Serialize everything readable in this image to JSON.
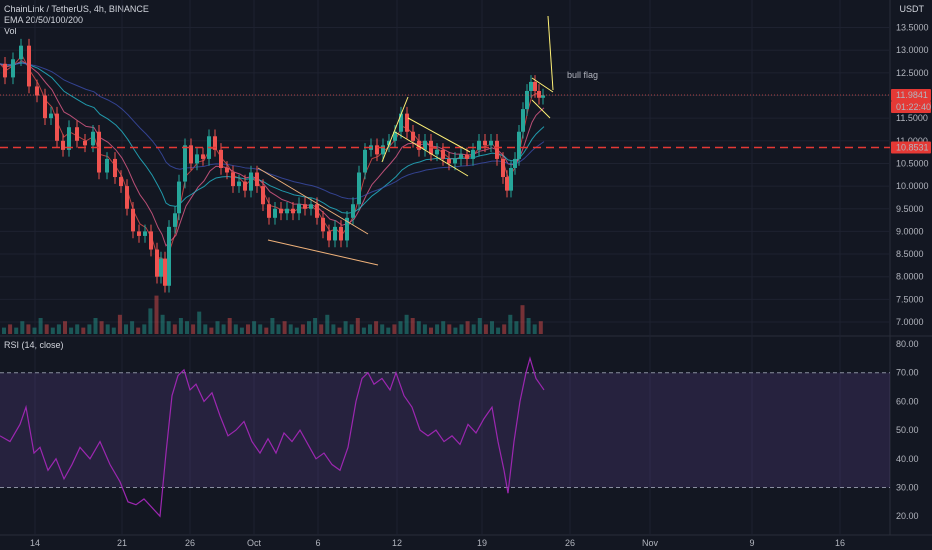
{
  "header": {
    "symbol_line": "ChainLink / TetherUS, 4h, BINANCE",
    "indicator_line": "EMA 20/50/100/200",
    "volume_label": "Vol",
    "currency": "USDT"
  },
  "rsi_panel": {
    "label": "RSI (14, close)",
    "ticks": [
      "80.00",
      "70.00",
      "60.00",
      "50.00",
      "40.00",
      "30.00",
      "20.00"
    ]
  },
  "annotation": {
    "text": "bull flag"
  },
  "price_tags": {
    "last_price": "11.9841",
    "countdown": "01:22:40",
    "level": "10.8531"
  },
  "colors": {
    "background": "#131722",
    "up": "#26a69a",
    "down": "#ef5350",
    "rsi_line": "#9c27b0",
    "rsi_band": "#7e57c2",
    "level_line": "#e53935",
    "flag": "#fff176",
    "trend": "#f0b27a"
  },
  "chart_data": {
    "type": "candlestick",
    "price_axis": {
      "ticks": [
        7.0,
        7.5,
        8.0,
        8.5,
        9.0,
        9.5,
        10.0,
        10.5,
        11.0,
        11.5,
        12.0,
        12.5,
        13.0,
        13.5
      ],
      "tick_labels": [
        "7.0000",
        "7.5000",
        "8.0000",
        "8.5000",
        "9.0000",
        "9.5000",
        "10.0000",
        "10.5000",
        "11.0000",
        "11.5000",
        "12.0000",
        "12.5000",
        "13.0000",
        "13.5000"
      ]
    },
    "x_axis": {
      "tick_labels": [
        "14",
        "21",
        "26",
        "Oct",
        "6",
        "12",
        "19",
        "26",
        "Nov",
        "9",
        "16"
      ]
    },
    "price_series": [
      [
        0,
        12.7
      ],
      [
        6,
        12.4
      ],
      [
        14,
        12.8
      ],
      [
        22,
        13.1
      ],
      [
        30,
        12.2
      ],
      [
        38,
        12.0
      ],
      [
        46,
        11.5
      ],
      [
        52,
        11.6
      ],
      [
        58,
        11.0
      ],
      [
        64,
        10.8
      ],
      [
        70,
        11.3
      ],
      [
        78,
        11.0
      ],
      [
        86,
        10.9
      ],
      [
        94,
        11.2
      ],
      [
        100,
        10.3
      ],
      [
        108,
        10.6
      ],
      [
        116,
        10.2
      ],
      [
        122,
        10.0
      ],
      [
        128,
        9.5
      ],
      [
        134,
        9.0
      ],
      [
        140,
        8.9
      ],
      [
        146,
        9.0
      ],
      [
        152,
        8.6
      ],
      [
        158,
        8.0
      ],
      [
        162,
        8.4
      ],
      [
        166,
        7.8
      ],
      [
        170,
        9.1
      ],
      [
        176,
        9.4
      ],
      [
        180,
        10.1
      ],
      [
        186,
        10.9
      ],
      [
        192,
        10.5
      ],
      [
        198,
        10.7
      ],
      [
        204,
        10.6
      ],
      [
        210,
        11.1
      ],
      [
        216,
        10.8
      ],
      [
        222,
        10.4
      ],
      [
        228,
        10.3
      ],
      [
        234,
        10.0
      ],
      [
        240,
        10.1
      ],
      [
        246,
        9.9
      ],
      [
        252,
        10.3
      ],
      [
        258,
        10.0
      ],
      [
        264,
        9.6
      ],
      [
        270,
        9.3
      ],
      [
        276,
        9.5
      ],
      [
        282,
        9.4
      ],
      [
        288,
        9.5
      ],
      [
        294,
        9.4
      ],
      [
        300,
        9.6
      ],
      [
        306,
        9.5
      ],
      [
        312,
        9.6
      ],
      [
        318,
        9.3
      ],
      [
        324,
        9.0
      ],
      [
        330,
        8.8
      ],
      [
        336,
        9.1
      ],
      [
        342,
        8.8
      ],
      [
        348,
        9.3
      ],
      [
        354,
        9.6
      ],
      [
        360,
        10.3
      ],
      [
        366,
        10.8
      ],
      [
        372,
        10.9
      ],
      [
        378,
        10.7
      ],
      [
        384,
        10.9
      ],
      [
        390,
        11.0
      ],
      [
        396,
        11.2
      ],
      [
        402,
        11.6
      ],
      [
        408,
        11.2
      ],
      [
        414,
        11.0
      ],
      [
        420,
        10.8
      ],
      [
        426,
        11.0
      ],
      [
        432,
        10.7
      ],
      [
        438,
        10.8
      ],
      [
        444,
        10.6
      ],
      [
        450,
        10.5
      ],
      [
        456,
        10.6
      ],
      [
        462,
        10.7
      ],
      [
        468,
        10.6
      ],
      [
        474,
        10.8
      ],
      [
        480,
        11.0
      ],
      [
        486,
        10.9
      ],
      [
        492,
        11.0
      ],
      [
        498,
        10.6
      ],
      [
        504,
        10.2
      ],
      [
        508,
        9.9
      ],
      [
        512,
        10.4
      ],
      [
        516,
        10.6
      ],
      [
        520,
        11.2
      ],
      [
        524,
        11.7
      ],
      [
        528,
        12.1
      ],
      [
        532,
        12.3
      ],
      [
        536,
        12.1
      ],
      [
        540,
        11.95
      ],
      [
        544,
        12.0
      ]
    ],
    "volume_series": [
      2,
      3,
      2,
      4,
      3,
      2,
      5,
      3,
      2,
      3,
      4,
      2,
      3,
      2,
      3,
      5,
      4,
      3,
      2,
      6,
      3,
      4,
      2,
      3,
      8,
      12,
      6,
      4,
      3,
      5,
      4,
      3,
      7,
      3,
      2,
      4,
      3,
      5,
      3,
      2,
      3,
      4,
      3,
      2,
      5,
      3,
      4,
      3,
      2,
      3,
      4,
      5,
      3,
      6,
      3,
      2,
      4,
      3,
      5,
      2,
      3,
      4,
      3,
      2,
      3,
      4,
      6,
      5,
      4,
      3,
      2,
      3,
      4,
      3,
      2,
      3,
      4,
      3,
      5,
      3,
      4,
      2,
      3,
      6,
      4,
      9,
      5,
      3,
      4
    ],
    "rsi_series": [
      [
        0,
        48
      ],
      [
        10,
        46
      ],
      [
        20,
        52
      ],
      [
        26,
        58
      ],
      [
        34,
        42
      ],
      [
        40,
        44
      ],
      [
        48,
        36
      ],
      [
        56,
        40
      ],
      [
        64,
        33
      ],
      [
        72,
        38
      ],
      [
        80,
        44
      ],
      [
        90,
        40
      ],
      [
        100,
        46
      ],
      [
        110,
        38
      ],
      [
        120,
        32
      ],
      [
        128,
        25
      ],
      [
        136,
        24
      ],
      [
        144,
        26
      ],
      [
        152,
        23
      ],
      [
        160,
        20
      ],
      [
        166,
        42
      ],
      [
        172,
        62
      ],
      [
        178,
        69
      ],
      [
        184,
        71
      ],
      [
        190,
        64
      ],
      [
        196,
        66
      ],
      [
        204,
        60
      ],
      [
        212,
        63
      ],
      [
        220,
        55
      ],
      [
        228,
        48
      ],
      [
        236,
        50
      ],
      [
        244,
        53
      ],
      [
        252,
        46
      ],
      [
        260,
        42
      ],
      [
        268,
        47
      ],
      [
        276,
        42
      ],
      [
        284,
        49
      ],
      [
        292,
        46
      ],
      [
        300,
        50
      ],
      [
        308,
        45
      ],
      [
        316,
        40
      ],
      [
        324,
        42
      ],
      [
        332,
        38
      ],
      [
        340,
        36
      ],
      [
        348,
        44
      ],
      [
        356,
        60
      ],
      [
        362,
        68
      ],
      [
        368,
        70
      ],
      [
        374,
        66
      ],
      [
        382,
        68
      ],
      [
        390,
        64
      ],
      [
        396,
        70
      ],
      [
        404,
        62
      ],
      [
        412,
        58
      ],
      [
        420,
        50
      ],
      [
        428,
        48
      ],
      [
        436,
        50
      ],
      [
        444,
        46
      ],
      [
        452,
        48
      ],
      [
        460,
        45
      ],
      [
        468,
        52
      ],
      [
        476,
        49
      ],
      [
        484,
        54
      ],
      [
        492,
        58
      ],
      [
        498,
        46
      ],
      [
        504,
        36
      ],
      [
        508,
        28
      ],
      [
        514,
        46
      ],
      [
        520,
        60
      ],
      [
        526,
        70
      ],
      [
        530,
        75
      ],
      [
        536,
        68
      ],
      [
        540,
        66
      ],
      [
        544,
        64
      ]
    ],
    "horizontal_level": 10.8531,
    "rsi_band": [
      30,
      70
    ]
  }
}
